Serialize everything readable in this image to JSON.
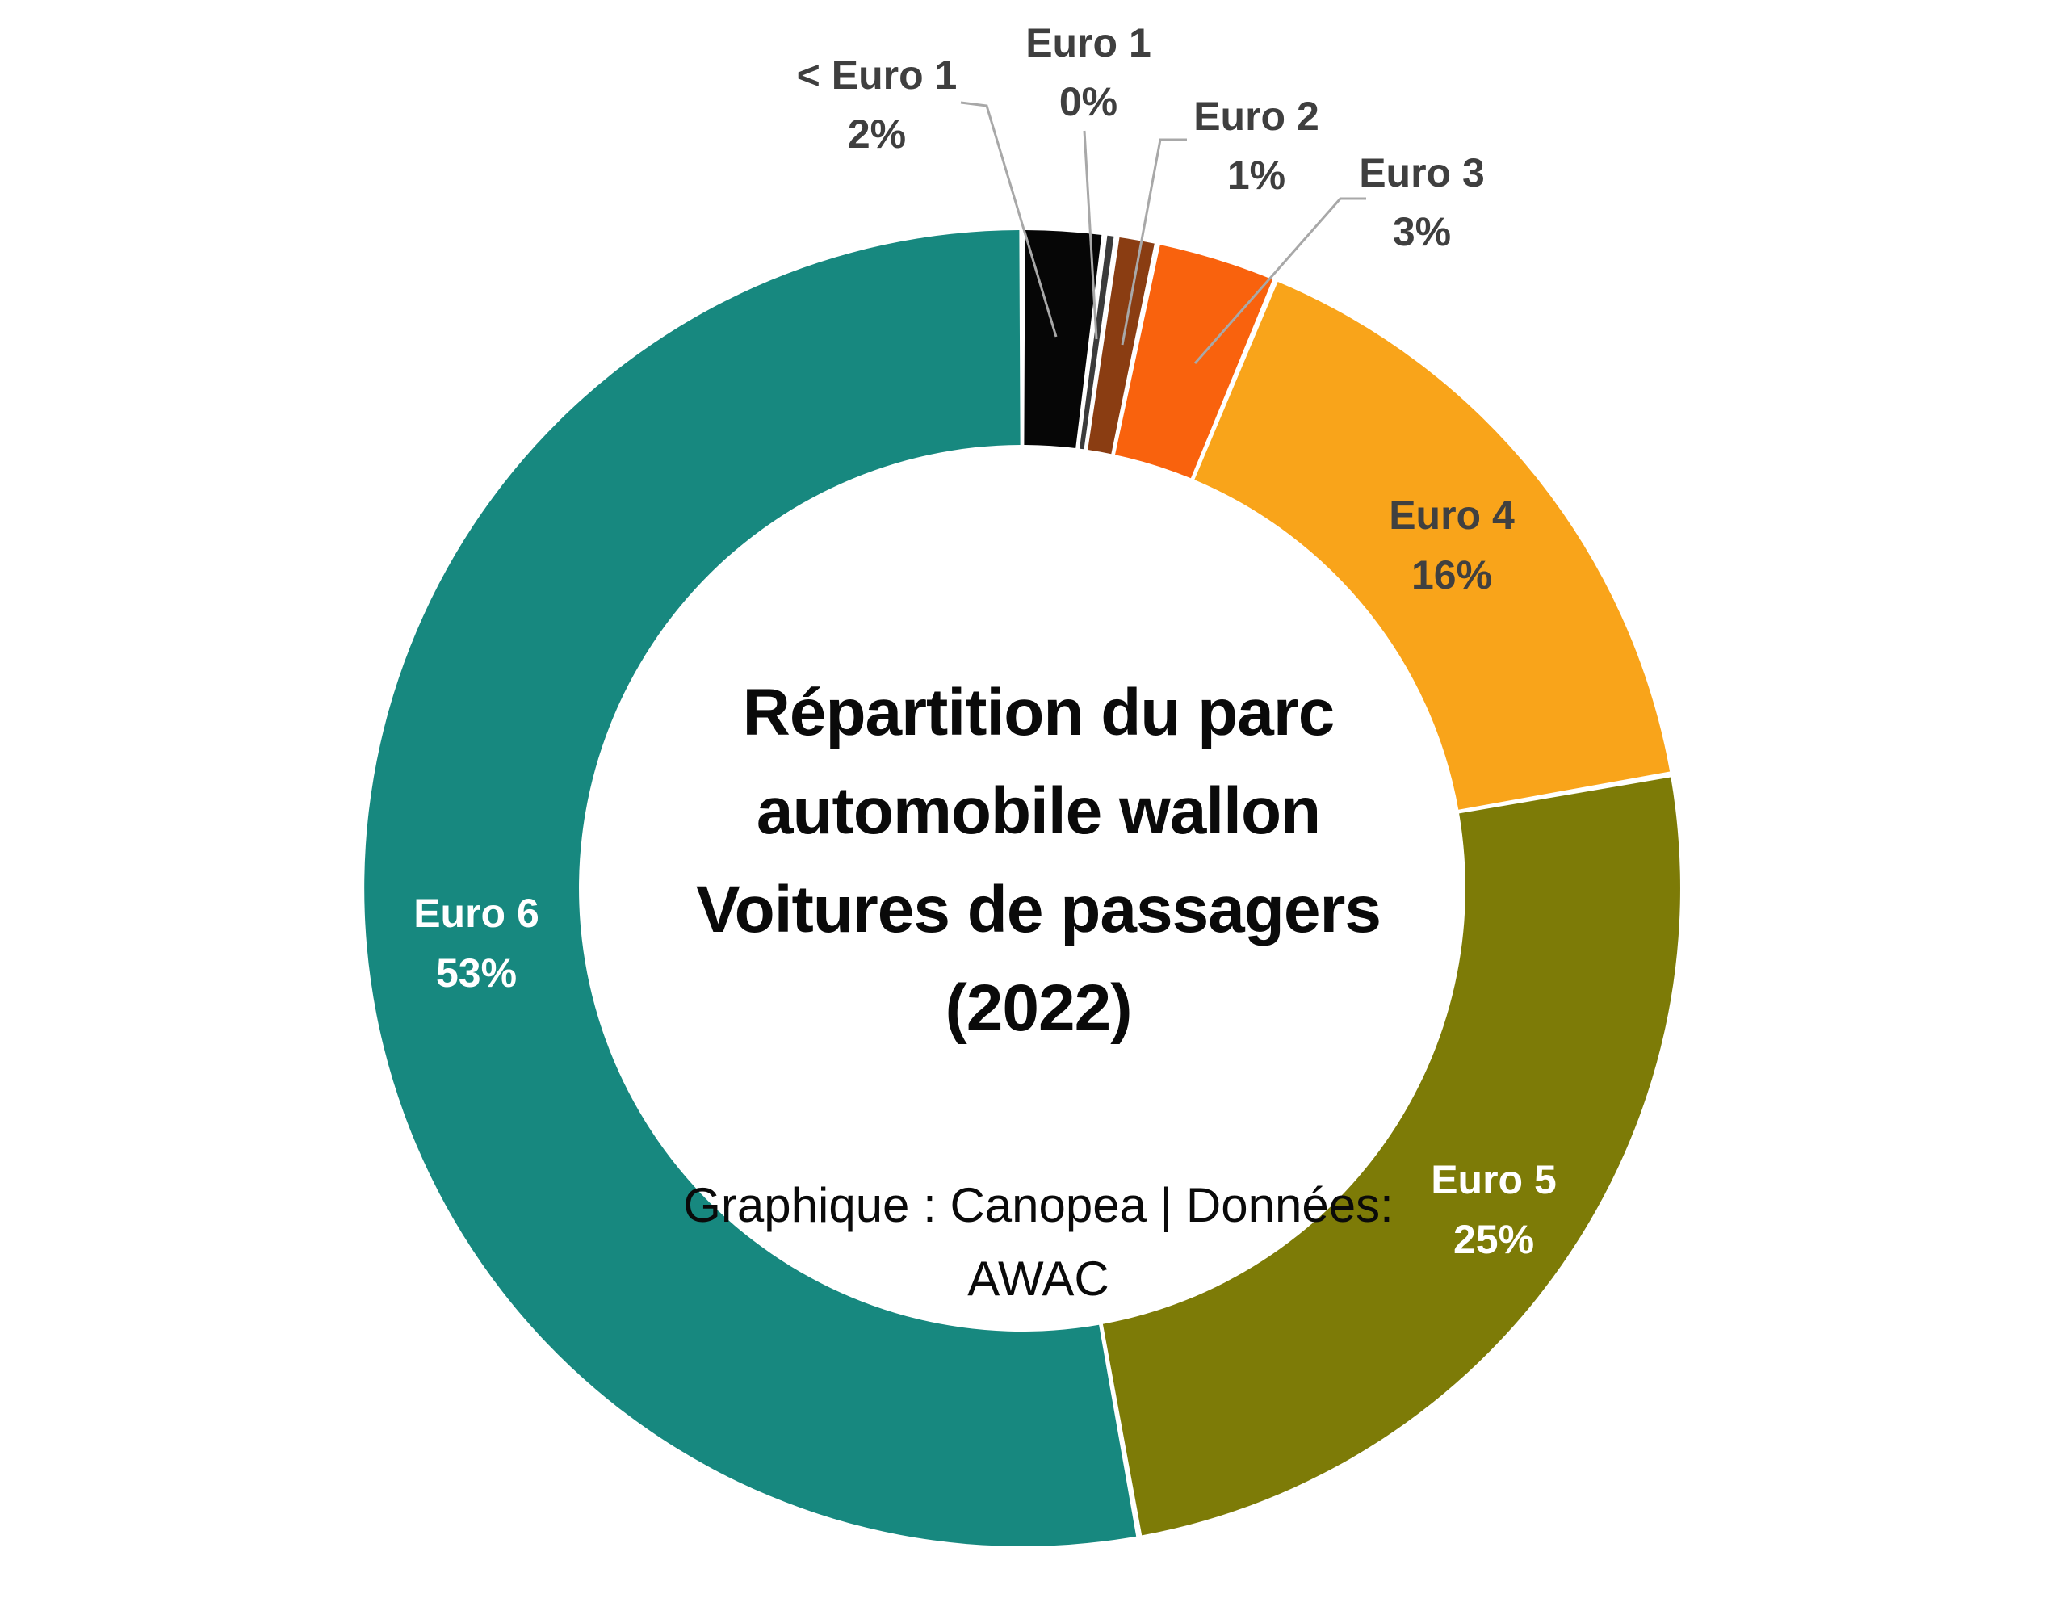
{
  "chart_data": {
    "type": "pie",
    "subtype": "donut",
    "title_lines": [
      "Répartition du parc",
      "automobile wallon",
      "Voitures de passagers",
      "(2022)"
    ],
    "source_lines": [
      "Graphique : Canopea | Données:",
      "AWAC"
    ],
    "start_angle": "top",
    "direction": "clockwise",
    "legend_position": "none",
    "background": "#FFFFFF",
    "leader_line_color": "#A8A8A8",
    "outside_label_color": "#3F3F3F",
    "categories": [
      "< Euro 1",
      "Euro 1",
      "Euro 2",
      "Euro 3",
      "Euro 4",
      "Euro 5",
      "Euro 6"
    ],
    "values": [
      2,
      0,
      1,
      3,
      16,
      25,
      53
    ],
    "slices": [
      {
        "label": "< Euro 1",
        "value": 2,
        "pct_text": "2%",
        "color": "#060606",
        "label_placement": "outside"
      },
      {
        "label": "Euro 1",
        "value": 0,
        "pct_text": "0%",
        "color": "#3B3B3B",
        "label_placement": "outside"
      },
      {
        "label": "Euro 2",
        "value": 1,
        "pct_text": "1%",
        "color": "#8A3D12",
        "label_placement": "outside"
      },
      {
        "label": "Euro 3",
        "value": 3,
        "pct_text": "3%",
        "color": "#F9620D",
        "label_placement": "outside"
      },
      {
        "label": "Euro 4",
        "value": 16,
        "pct_text": "16%",
        "color": "#F9A41A",
        "label_placement": "inside",
        "label_color": "#404040"
      },
      {
        "label": "Euro 5",
        "value": 25,
        "pct_text": "25%",
        "color": "#7D7B07",
        "label_placement": "inside",
        "label_color": "#FFFFFF"
      },
      {
        "label": "Euro 6",
        "value": 53,
        "pct_text": "53%",
        "color": "#17887F",
        "label_placement": "inside",
        "label_color": "#FFFFFF"
      }
    ]
  }
}
